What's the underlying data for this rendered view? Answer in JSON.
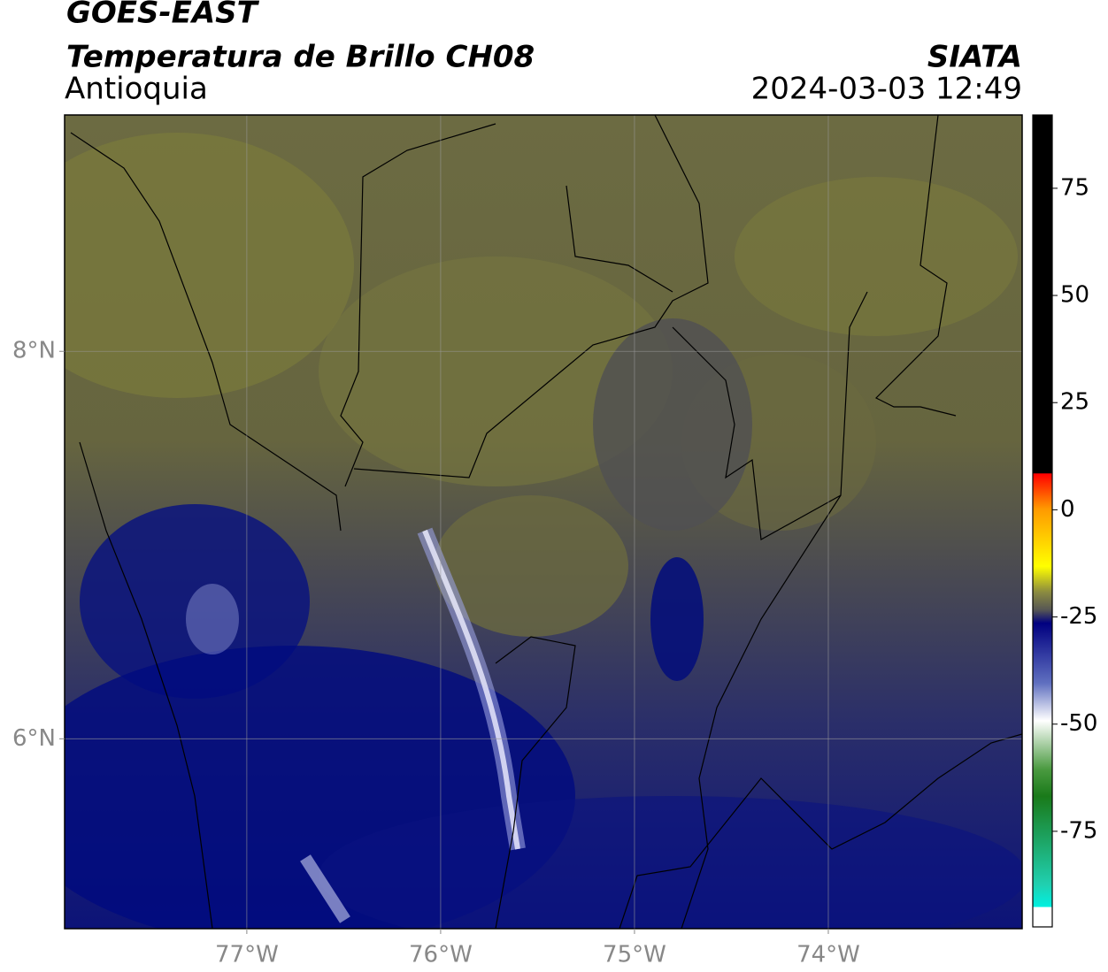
{
  "header": {
    "title": "GOES-EAST",
    "subtitle": "Temperatura de Brillo CH08",
    "region": "Antioquia",
    "agency": "SIATA",
    "datetime": "2024-03-03 12:49"
  },
  "map": {
    "xlim": [
      -77.94,
      -73.0
    ],
    "ylim": [
      5.02,
      9.22
    ],
    "xticks": [
      {
        "value": -77,
        "label": "77°W"
      },
      {
        "value": -76,
        "label": "76°W"
      },
      {
        "value": -75,
        "label": "75°W"
      },
      {
        "value": -74,
        "label": "74°W"
      }
    ],
    "yticks": [
      {
        "value": 8,
        "label": "8°N"
      },
      {
        "value": 6,
        "label": "6°N"
      }
    ]
  },
  "colorbar": {
    "lim": [
      -97.3,
      92.1
    ],
    "ticks": [
      75,
      50,
      25,
      0,
      -25,
      -50,
      -75
    ]
  }
}
